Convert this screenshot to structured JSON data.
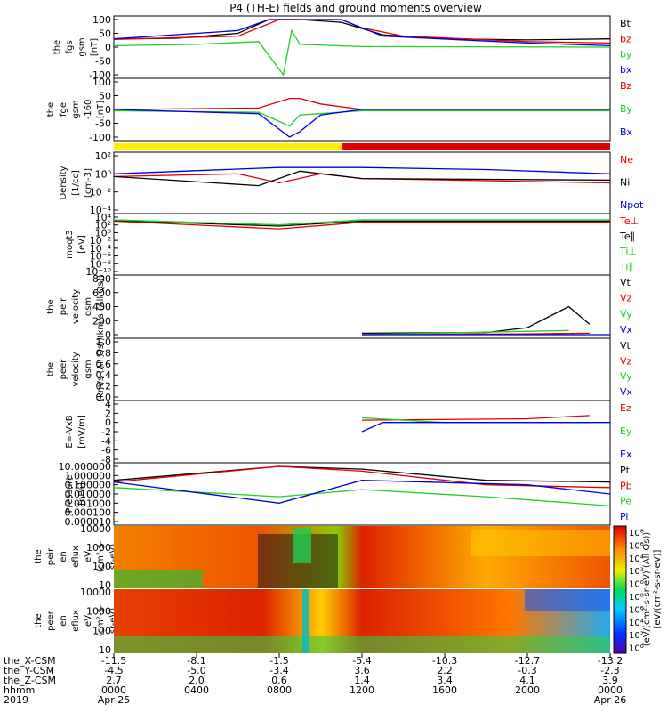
{
  "title": "P4 (TH-E) fields and ground moments overview",
  "colors": {
    "black": "#000000",
    "red": "#e00000",
    "green": "#22cc22",
    "blue": "#0000dd",
    "yellow": "#ffee00"
  },
  "panels": [
    {
      "id": "fgs",
      "ylabel": [
        "the",
        "fgs",
        "gsm",
        "[nT]"
      ],
      "ticks": [
        "100",
        "50",
        "0",
        "-50",
        "-100"
      ],
      "legend": [
        {
          "t": "Bt",
          "c": "black"
        },
        {
          "t": "bz",
          "c": "red"
        },
        {
          "t": "by",
          "c": "green"
        },
        {
          "t": "bx",
          "c": "blue"
        }
      ]
    },
    {
      "id": "fge",
      "ylabel": [
        "the",
        "fge",
        "gsm",
        "-160",
        "[nT]"
      ],
      "ticks": [
        "100",
        "50",
        "0",
        "-50",
        "-100"
      ],
      "legend": [
        {
          "t": "Bz",
          "c": "red"
        },
        {
          "t": "By",
          "c": "green"
        },
        {
          "t": "Bx",
          "c": "blue"
        }
      ]
    },
    {
      "id": "density",
      "ylabel": [
        "Density",
        "[1/cc]",
        "[cm-3]"
      ],
      "ticks": [
        "10²",
        "10⁰",
        "10⁻²",
        "10⁻⁴"
      ],
      "legend": [
        {
          "t": "Ne",
          "c": "red"
        },
        {
          "t": "Ni",
          "c": "black"
        },
        {
          "t": "Npot",
          "c": "blue"
        }
      ]
    },
    {
      "id": "temp",
      "ylabel": [
        "moqt3",
        "[eV]"
      ],
      "ticks": [
        "10⁴",
        "10²",
        "10⁰",
        "10⁻²",
        "10⁻⁴",
        "10⁻⁶",
        "10⁻⁸",
        "10⁻¹⁰"
      ],
      "legend": [
        {
          "t": "Te⊥",
          "c": "red"
        },
        {
          "t": "Te∥",
          "c": "black"
        },
        {
          "t": "Ti⊥",
          "c": "green"
        },
        {
          "t": "Ti∥",
          "c": "green"
        }
      ]
    },
    {
      "id": "peir_vel",
      "ylabel": [
        "the",
        "peir",
        "velocity",
        "gsm",
        "(km/s (All Qs))"
      ],
      "ticks": [
        "800",
        "600",
        "400",
        "200",
        "0"
      ],
      "legend": [
        {
          "t": "Vt",
          "c": "black"
        },
        {
          "t": "Vz",
          "c": "red"
        },
        {
          "t": "Vy",
          "c": "green"
        },
        {
          "t": "Vx",
          "c": "blue"
        }
      ]
    },
    {
      "id": "peer_vel",
      "ylabel": [
        "the",
        "peer",
        "velocity",
        "gsm",
        "(km/s (All Qs))"
      ],
      "ticks": [
        "1.0",
        "0.8",
        "0.6",
        "0.4",
        "0.2",
        "0.0"
      ],
      "legend": [
        {
          "t": "Vt",
          "c": "black"
        },
        {
          "t": "Vz",
          "c": "red"
        },
        {
          "t": "Vy",
          "c": "green"
        },
        {
          "t": "Vx",
          "c": "blue"
        }
      ]
    },
    {
      "id": "efield",
      "ylabel": [
        "E=-VxB",
        "[mV/m]"
      ],
      "ticks": [
        "4",
        "2",
        "0",
        "-2",
        "-4",
        "-6",
        "-8"
      ],
      "legend": [
        {
          "t": "Ez",
          "c": "red"
        },
        {
          "t": "Ey",
          "c": "green"
        },
        {
          "t": "Ex",
          "c": "blue"
        }
      ]
    },
    {
      "id": "pressure",
      "ylabel": [
        "Pressure",
        "[nPa]"
      ],
      "ticks": [
        "10.000000",
        "1.000000",
        "0.100000",
        "0.010000",
        "0.001000",
        "0.000100",
        "0.000010"
      ],
      "legend": [
        {
          "t": "Pt",
          "c": "black"
        },
        {
          "t": "Pb",
          "c": "red"
        },
        {
          "t": "Pe",
          "c": "green"
        },
        {
          "t": "Pi",
          "c": "blue"
        }
      ]
    },
    {
      "id": "peir_en",
      "ylabel": [
        "the",
        "peir",
        "en",
        "eflux",
        "eV",
        "(cm²-s-",
        "sr-eV)"
      ],
      "ticks": [
        "10000",
        "1000",
        "100",
        "10"
      ],
      "legend": []
    },
    {
      "id": "peer_en",
      "ylabel": [
        "the",
        "peer",
        "en",
        "eflux",
        "eV",
        "(cm²-s-",
        "sr-eV)"
      ],
      "ticks": [
        "10000",
        "1000",
        "100",
        "10"
      ],
      "legend": []
    }
  ],
  "colorbar": {
    "ticks": [
      "10⁸",
      "10⁶",
      "10⁴",
      "10²",
      "10⁰",
      "10⁸",
      "10⁶",
      "10⁴",
      "10²",
      "10⁰"
    ],
    "label": "[eV/(cm²-s-sr-eV)]",
    "label2": "(eV/(cm²-s-sr-eV) (All Qs))"
  },
  "xaxis": {
    "rows": [
      {
        "name": "the_X-CSM",
        "vals": [
          "-11.5",
          "-8.1",
          "-1.5",
          "-5.4",
          "-10.3",
          "-12.7",
          "-13.2"
        ]
      },
      {
        "name": "the_Y-CSM",
        "vals": [
          "-4.5",
          "-5.0",
          "-3.4",
          "3.6",
          "2.2",
          "-0.3",
          "-2.3"
        ]
      },
      {
        "name": "the_Z-CSM",
        "vals": [
          "2.7",
          "2.0",
          "0.6",
          "1.4",
          "3.4",
          "4.1",
          "3.9"
        ]
      },
      {
        "name": "hhmm",
        "vals": [
          "0000",
          "0400",
          "0800",
          "1200",
          "1600",
          "2000",
          "0000"
        ]
      },
      {
        "name": "2019",
        "vals": [
          "Apr 25",
          "",
          "",
          "",
          "",
          "",
          "Apr 26"
        ]
      }
    ],
    "extra_rows_mid": [
      "-3.4",
      "-5.4"
    ]
  },
  "chart_data": {
    "type": "line",
    "title": "P4 (TH-E) fields and ground moments overview",
    "x_label": "hhmm",
    "x_ticks": [
      "0000",
      "0400",
      "0800",
      "1200",
      "1600",
      "2000",
      "0000"
    ],
    "x_range_hours": [
      0,
      24
    ],
    "panels_summary": [
      {
        "name": "the fgs gsm",
        "ylim": [
          -100,
          100
        ],
        "series": [
          {
            "name": "Bt",
            "approx": [
              [
                0,
                30
              ],
              [
                3,
                32
              ],
              [
                6,
                50
              ],
              [
                7.5,
                100
              ],
              [
                9,
                100
              ],
              [
                11,
                90
              ],
              [
                13,
                45
              ],
              [
                16,
                30
              ],
              [
                20,
                26
              ],
              [
                24,
                30
              ]
            ]
          },
          {
            "name": "bz",
            "approx": [
              [
                0,
                28
              ],
              [
                6,
                40
              ],
              [
                8,
                100
              ],
              [
                11,
                100
              ],
              [
                12,
                70
              ],
              [
                14,
                40
              ],
              [
                20,
                20
              ],
              [
                24,
                15
              ]
            ]
          },
          {
            "name": "by",
            "approx": [
              [
                0,
                5
              ],
              [
                4,
                10
              ],
              [
                7,
                20
              ],
              [
                8.2,
                -100
              ],
              [
                8.6,
                60
              ],
              [
                9,
                10
              ],
              [
                12,
                2
              ],
              [
                24,
                0
              ]
            ]
          },
          {
            "name": "bx",
            "approx": [
              [
                0,
                30
              ],
              [
                6,
                60
              ],
              [
                7.5,
                100
              ],
              [
                11,
                100
              ],
              [
                13,
                40
              ],
              [
                20,
                15
              ],
              [
                24,
                5
              ]
            ]
          }
        ]
      },
      {
        "name": "the fge gsm",
        "ylim": [
          -100,
          100
        ],
        "series": [
          {
            "name": "Bz",
            "approx": [
              [
                0,
                0
              ],
              [
                7,
                5
              ],
              [
                8.5,
                40
              ],
              [
                9,
                40
              ],
              [
                10,
                20
              ],
              [
                12,
                0
              ],
              [
                24,
                0
              ]
            ]
          },
          {
            "name": "By",
            "approx": [
              [
                0,
                -5
              ],
              [
                7,
                -10
              ],
              [
                8.5,
                -60
              ],
              [
                9,
                -20
              ],
              [
                12,
                -5
              ],
              [
                24,
                -5
              ]
            ]
          },
          {
            "name": "Bx",
            "approx": [
              [
                0,
                0
              ],
              [
                7,
                -15
              ],
              [
                8.5,
                -110
              ],
              [
                9,
                -80
              ],
              [
                10,
                -20
              ],
              [
                12,
                0
              ],
              [
                24,
                0
              ]
            ]
          }
        ]
      },
      {
        "name": "Density",
        "ylim": [
          "1e-4",
          "1e2"
        ],
        "series": [
          {
            "name": "Ne",
            "approx": [
              [
                0,
                0.5
              ],
              [
                6,
                1
              ],
              [
                8,
                0.1
              ],
              [
                10,
                1
              ],
              [
                12,
                0.3
              ],
              [
                24,
                0.1
              ]
            ]
          },
          {
            "name": "Ni",
            "approx": [
              [
                0,
                0.5
              ],
              [
                7,
                0.05
              ],
              [
                9,
                2
              ],
              [
                12,
                0.3
              ],
              [
                24,
                0.2
              ]
            ]
          },
          {
            "name": "Npot",
            "approx": [
              [
                0,
                1
              ],
              [
                8,
                5
              ],
              [
                12,
                5
              ],
              [
                18,
                3
              ],
              [
                24,
                1
              ]
            ]
          }
        ]
      },
      {
        "name": "moqt3",
        "ylim": [
          "1e-10",
          "1e4"
        ],
        "series": [
          {
            "name": "Te⊥",
            "approx": [
              [
                0,
                1000
              ],
              [
                8,
                10
              ],
              [
                12,
                500
              ],
              [
                24,
                500
              ]
            ]
          },
          {
            "name": "Te∥",
            "approx": [
              [
                0,
                1500
              ],
              [
                8,
                50
              ],
              [
                12,
                1000
              ],
              [
                24,
                1000
              ]
            ]
          },
          {
            "name": "Ti⊥",
            "approx": [
              [
                0,
                2000
              ],
              [
                8,
                100
              ],
              [
                12,
                2000
              ],
              [
                24,
                2000
              ]
            ]
          },
          {
            "name": "Ti∥",
            "approx": [
              [
                0,
                2000
              ],
              [
                8,
                100
              ],
              [
                12,
                2000
              ],
              [
                24,
                2000
              ]
            ]
          }
        ]
      },
      {
        "name": "the peir velocity gsm",
        "ylim": [
          0,
          800
        ],
        "series": [
          {
            "name": "Vt",
            "approx": [
              [
                12,
                20
              ],
              [
                18,
                30
              ],
              [
                20,
                100
              ],
              [
                22,
                400
              ],
              [
                23,
                150
              ]
            ]
          },
          {
            "name": "Vz",
            "approx": [
              [
                12,
                0
              ],
              [
                20,
                10
              ],
              [
                23,
                20
              ]
            ]
          },
          {
            "name": "Vy",
            "approx": [
              [
                12,
                0
              ],
              [
                22,
                60
              ]
            ]
          },
          {
            "name": "Vx",
            "approx": [
              [
                12,
                0
              ],
              [
                24,
                0
              ]
            ]
          }
        ]
      },
      {
        "name": "the peer velocity gsm",
        "ylim": [
          0,
          1
        ],
        "series": []
      },
      {
        "name": "E=-VxB",
        "ylim": [
          -8,
          4
        ],
        "series": [
          {
            "name": "Ez",
            "approx": [
              [
                12,
                0.5
              ],
              [
                20,
                0.8
              ],
              [
                23,
                1.5
              ]
            ]
          },
          {
            "name": "Ey",
            "approx": [
              [
                12,
                1.0
              ],
              [
                16,
                0
              ],
              [
                23,
                0
              ]
            ]
          },
          {
            "name": "Ex",
            "approx": [
              [
                12,
                -2
              ],
              [
                13,
                0
              ],
              [
                24,
                0
              ]
            ]
          }
        ]
      },
      {
        "name": "Pressure",
        "ylim": [
          "1e-5",
          "1e1"
        ],
        "series": [
          {
            "name": "Pt",
            "approx": [
              [
                0,
                0.3
              ],
              [
                8,
                10
              ],
              [
                12,
                5
              ],
              [
                18,
                0.3
              ],
              [
                24,
                0.2
              ]
            ]
          },
          {
            "name": "Pb",
            "approx": [
              [
                0,
                0.2
              ],
              [
                8,
                10
              ],
              [
                12,
                3
              ],
              [
                18,
                0.1
              ],
              [
                24,
                0.05
              ]
            ]
          },
          {
            "name": "Pe",
            "approx": [
              [
                0,
                0.05
              ],
              [
                8,
                0.005
              ],
              [
                12,
                0.03
              ],
              [
                18,
                0.005
              ],
              [
                24,
                0.0005
              ]
            ]
          },
          {
            "name": "Pi",
            "approx": [
              [
                0,
                0.2
              ],
              [
                8,
                0.001
              ],
              [
                12,
                0.3
              ],
              [
                20,
                0.1
              ],
              [
                24,
                0.01
              ]
            ]
          }
        ]
      },
      {
        "name": "the peir en eflux",
        "type": "heatmap",
        "ylim": [
          10,
          10000
        ]
      },
      {
        "name": "the peer en eflux",
        "type": "heatmap",
        "ylim": [
          10,
          10000
        ]
      }
    ]
  }
}
